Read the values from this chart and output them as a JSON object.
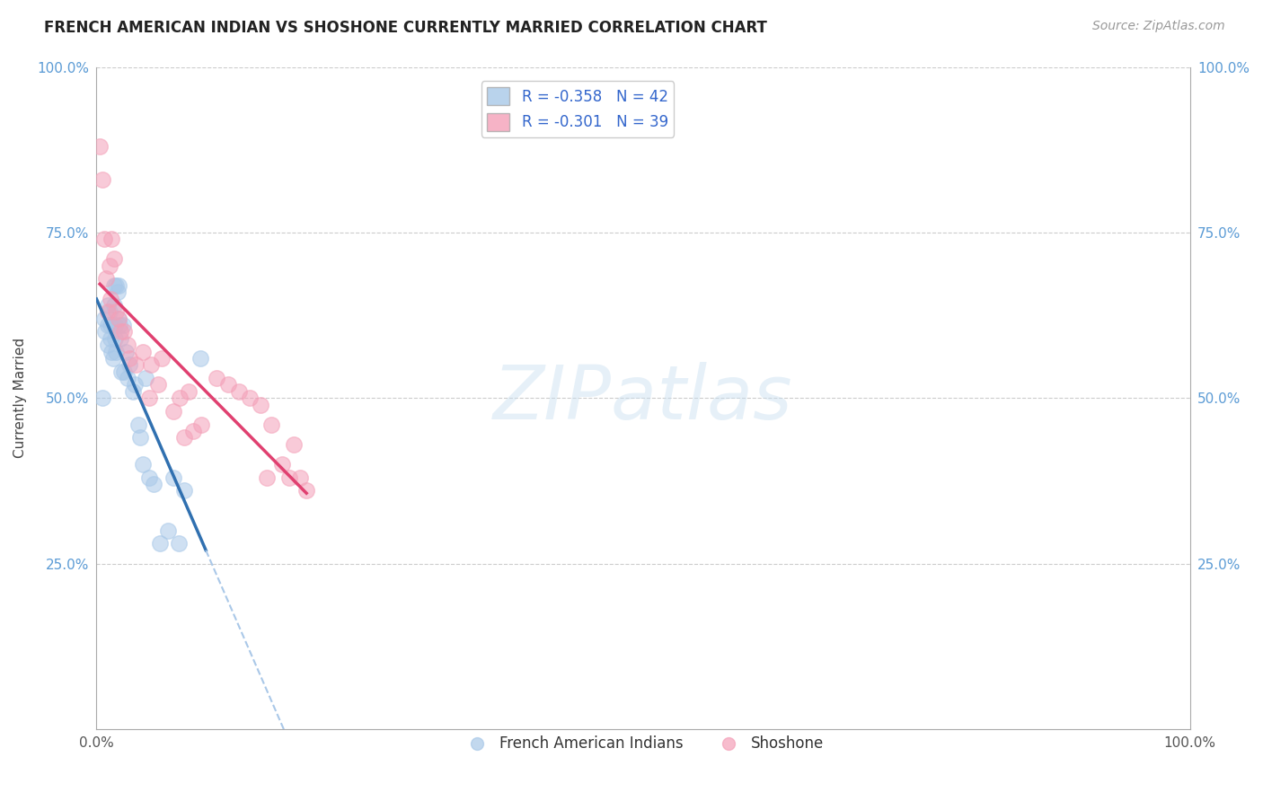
{
  "title": "FRENCH AMERICAN INDIAN VS SHOSHONE CURRENTLY MARRIED CORRELATION CHART",
  "source": "Source: ZipAtlas.com",
  "ylabel": "Currently Married",
  "xlim": [
    0.0,
    1.0
  ],
  "ylim": [
    0.0,
    1.0
  ],
  "y_tick_vals": [
    0.25,
    0.5,
    0.75,
    1.0
  ],
  "y_tick_labels": [
    "25.0%",
    "50.0%",
    "75.0%",
    "100.0%"
  ],
  "x_tick_vals": [
    0.0,
    1.0
  ],
  "x_tick_labels": [
    "0.0%",
    "100.0%"
  ],
  "legend_entry1": "R = -0.358   N = 42",
  "legend_entry2": "R = -0.301   N = 39",
  "legend_label1": "French American Indians",
  "legend_label2": "Shoshone",
  "color_blue": "#a8c8e8",
  "color_pink": "#f4a0b8",
  "color_blue_line": "#3070b0",
  "color_pink_line": "#e04070",
  "color_dashed": "#aac8e8",
  "french_x": [
    0.005,
    0.007,
    0.008,
    0.01,
    0.01,
    0.01,
    0.012,
    0.013,
    0.013,
    0.014,
    0.015,
    0.016,
    0.016,
    0.017,
    0.017,
    0.018,
    0.018,
    0.019,
    0.02,
    0.02,
    0.021,
    0.022,
    0.023,
    0.024,
    0.025,
    0.027,
    0.028,
    0.03,
    0.033,
    0.035,
    0.038,
    0.04,
    0.042,
    0.045,
    0.048,
    0.052,
    0.058,
    0.065,
    0.07,
    0.075,
    0.08,
    0.095
  ],
  "french_y": [
    0.5,
    0.62,
    0.6,
    0.64,
    0.61,
    0.58,
    0.63,
    0.61,
    0.59,
    0.57,
    0.56,
    0.67,
    0.64,
    0.61,
    0.59,
    0.57,
    0.67,
    0.66,
    0.62,
    0.67,
    0.61,
    0.59,
    0.54,
    0.61,
    0.54,
    0.57,
    0.53,
    0.55,
    0.51,
    0.52,
    0.46,
    0.44,
    0.4,
    0.53,
    0.38,
    0.37,
    0.28,
    0.3,
    0.38,
    0.28,
    0.36,
    0.56
  ],
  "shoshone_x": [
    0.003,
    0.005,
    0.007,
    0.009,
    0.01,
    0.012,
    0.013,
    0.014,
    0.016,
    0.018,
    0.02,
    0.022,
    0.025,
    0.028,
    0.03,
    0.036,
    0.042,
    0.048,
    0.05,
    0.056,
    0.06,
    0.07,
    0.076,
    0.08,
    0.084,
    0.088,
    0.096,
    0.11,
    0.12,
    0.13,
    0.14,
    0.15,
    0.156,
    0.16,
    0.17,
    0.176,
    0.18,
    0.186,
    0.192
  ],
  "shoshone_y": [
    0.88,
    0.83,
    0.74,
    0.68,
    0.63,
    0.7,
    0.65,
    0.74,
    0.71,
    0.63,
    0.62,
    0.6,
    0.6,
    0.58,
    0.56,
    0.55,
    0.57,
    0.5,
    0.55,
    0.52,
    0.56,
    0.48,
    0.5,
    0.44,
    0.51,
    0.45,
    0.46,
    0.53,
    0.52,
    0.51,
    0.5,
    0.49,
    0.38,
    0.46,
    0.4,
    0.38,
    0.43,
    0.38,
    0.36
  ]
}
